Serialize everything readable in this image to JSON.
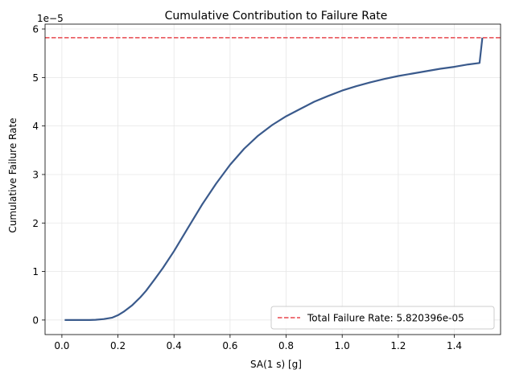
{
  "chart_data": {
    "type": "line",
    "title": "Cumulative Contribution to Failure Rate",
    "xlabel": "SA(1 s) [g]",
    "ylabel": "Cumulative Failure Rate",
    "y_scale_label": "1e−5",
    "xlim": [
      -0.06,
      1.565
    ],
    "ylim": [
      -0.3,
      6.1
    ],
    "x_ticks": [
      0.0,
      0.2,
      0.4,
      0.6,
      0.8,
      1.0,
      1.2,
      1.4
    ],
    "x_tick_labels": [
      "0.0",
      "0.2",
      "0.4",
      "0.6",
      "0.8",
      "1.0",
      "1.2",
      "1.4"
    ],
    "y_ticks": [
      0,
      1,
      2,
      3,
      4,
      5,
      6
    ],
    "y_tick_labels": [
      "0",
      "1",
      "2",
      "3",
      "4",
      "5",
      "6"
    ],
    "grid": true,
    "legend_position": "lower-right",
    "series": [
      {
        "color": "#3a5a8c",
        "x": [
          0.01,
          0.05,
          0.1,
          0.12,
          0.15,
          0.18,
          0.2,
          0.22,
          0.25,
          0.28,
          0.3,
          0.33,
          0.36,
          0.4,
          0.45,
          0.5,
          0.55,
          0.6,
          0.65,
          0.7,
          0.75,
          0.8,
          0.85,
          0.9,
          0.95,
          1.0,
          1.05,
          1.1,
          1.15,
          1.2,
          1.25,
          1.3,
          1.35,
          1.4,
          1.45,
          1.49,
          1.5
        ],
        "y": [
          0,
          0,
          0,
          0.005,
          0.02,
          0.05,
          0.1,
          0.17,
          0.3,
          0.47,
          0.6,
          0.83,
          1.07,
          1.42,
          1.9,
          2.38,
          2.81,
          3.2,
          3.53,
          3.8,
          4.02,
          4.2,
          4.35,
          4.5,
          4.62,
          4.73,
          4.82,
          4.9,
          4.97,
          5.03,
          5.08,
          5.13,
          5.18,
          5.22,
          5.27,
          5.3,
          5.82
        ]
      }
    ],
    "reference_line": {
      "label": "Total Failure Rate: 5.820396e-05",
      "y": 5.820396,
      "color": "#e8474d",
      "style": "dashed"
    }
  }
}
